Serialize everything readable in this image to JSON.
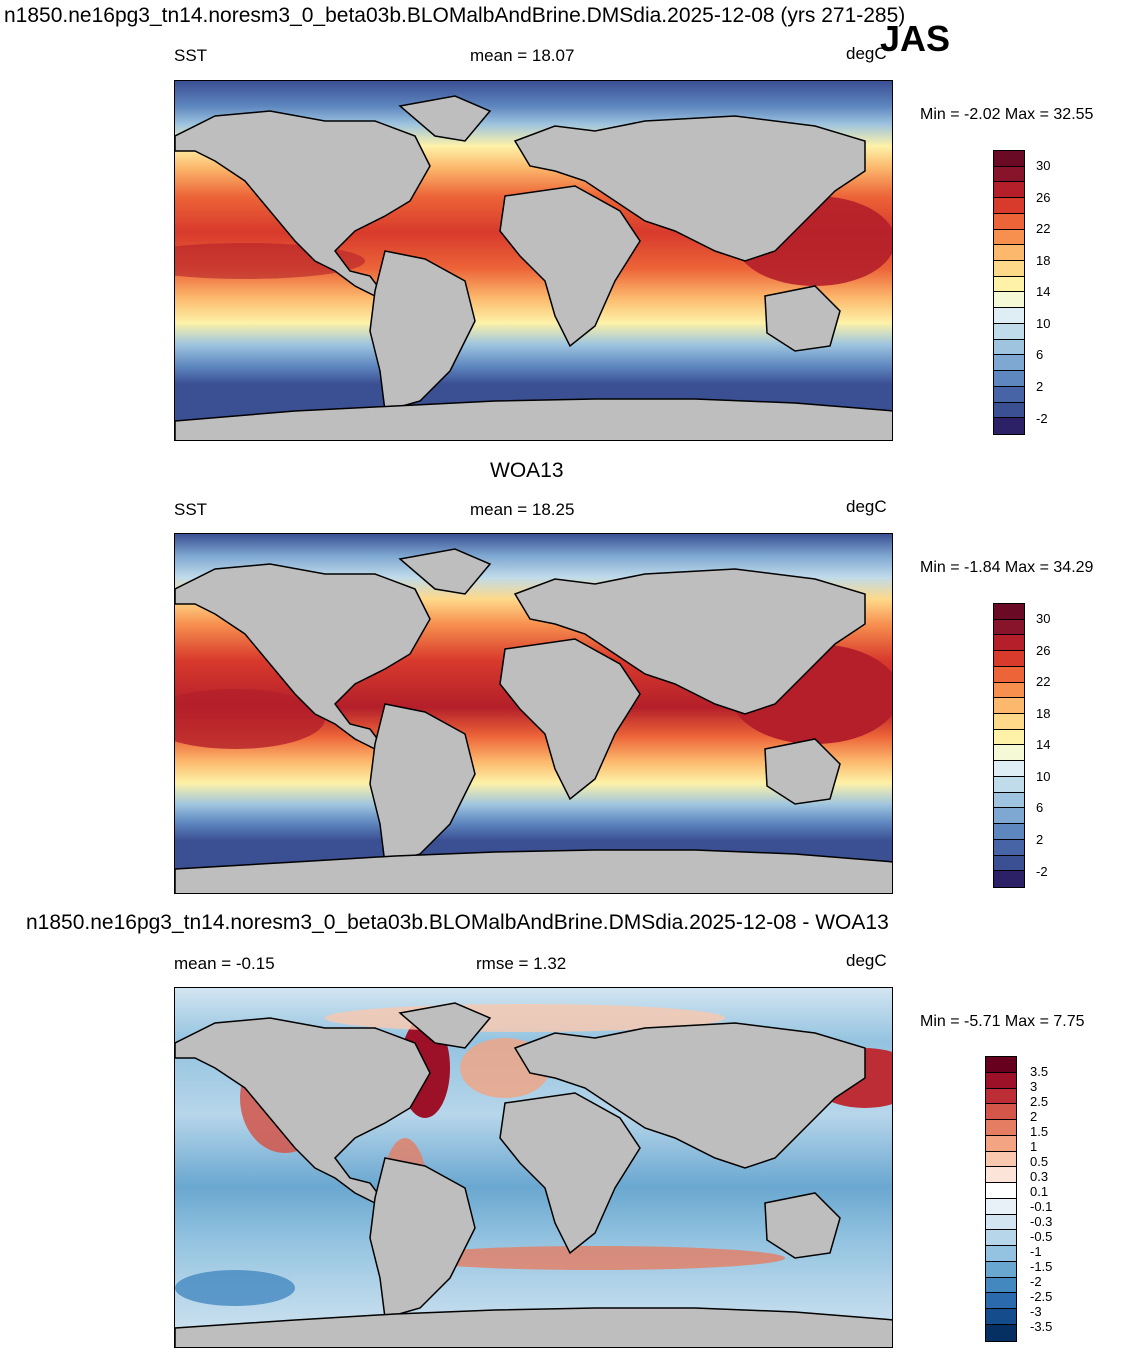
{
  "header": {
    "title": "n1850.ne16pg3_tn14.noresm3_0_beta03b.BLOMalbAndBrine.DMSdia.2025-12-08 (yrs 271-285)",
    "season": "JAS"
  },
  "colors": {
    "land": "#bebebe",
    "sst_scale": [
      "#2c2066",
      "#3b4f93",
      "#4664a6",
      "#5e87bf",
      "#7ea7d1",
      "#9ec4df",
      "#c0dbea",
      "#dfeef4",
      "#f5f9d6",
      "#fdf2a8",
      "#fed98a",
      "#fcb86c",
      "#f7904f",
      "#ec6438",
      "#d83a2c",
      "#b41f2a",
      "#87142a",
      "#6b0a25"
    ],
    "diff_scale": [
      "#053061",
      "#154d8c",
      "#2b6aac",
      "#4488c0",
      "#6aa7d0",
      "#93c3e0",
      "#b7d6ea",
      "#d3e5f1",
      "#e8f1f8",
      "#ffffff",
      "#fce5d8",
      "#fac8ae",
      "#f3a482",
      "#e57d63",
      "#d45549",
      "#bd2d35",
      "#9c1127",
      "#67001f"
    ]
  },
  "panels": [
    {
      "title": "",
      "left_label": "SST",
      "center_label": "mean =  18.07",
      "right_label": "degC",
      "minmax": "Min =  -2.02 Max =  32.55",
      "colorbar_ticks": [
        "30",
        "26",
        "22",
        "18",
        "14",
        "10",
        "6",
        "2",
        "-2"
      ]
    },
    {
      "title": "WOA13",
      "left_label": "SST",
      "center_label": "mean =  18.25",
      "right_label": "degC",
      "minmax": "Min =  -1.84 Max =  34.29",
      "colorbar_ticks": [
        "30",
        "26",
        "22",
        "18",
        "14",
        "10",
        "6",
        "2",
        "-2"
      ]
    },
    {
      "title": "n1850.ne16pg3_tn14.noresm3_0_beta03b.BLOMalbAndBrine.DMSdia.2025-12-08 - WOA13",
      "left_label": "mean =  -0.15",
      "center_label": "rmse =   1.32",
      "right_label": "degC",
      "minmax": "Min =  -5.71 Max =   7.75",
      "colorbar_ticks": [
        "3.5",
        "3",
        "2.5",
        "2",
        "1.5",
        "1",
        "0.5",
        "0.3",
        "0.1",
        "-0.1",
        "-0.3",
        "-0.5",
        "-1",
        "-1.5",
        "-2",
        "-2.5",
        "-3",
        "-3.5"
      ]
    }
  ]
}
